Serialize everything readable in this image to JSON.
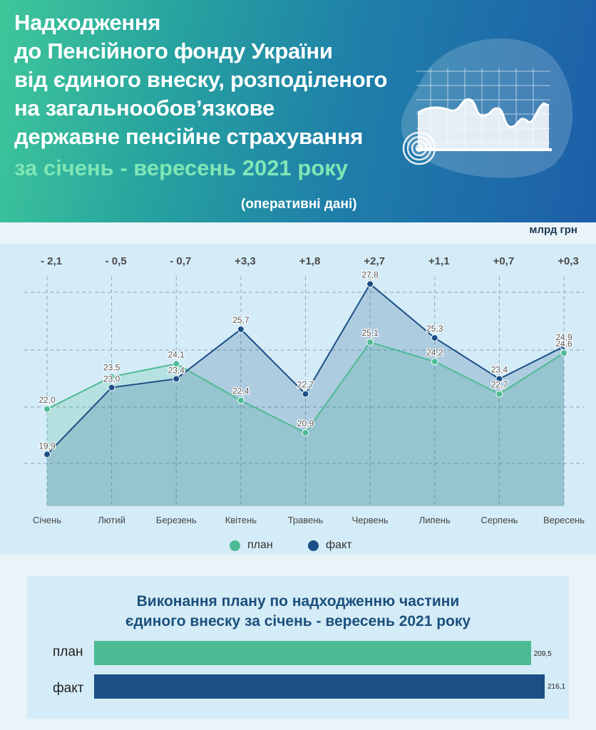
{
  "header": {
    "title_lines": [
      "Надходження",
      "до Пенсійного фонду України",
      "від єдиного внеску, розподіленого",
      "на загальнообов’язкове",
      "державне пенсійне страхування"
    ],
    "period": "за січень - вересень 2021 року",
    "note": "(оперативні дані)"
  },
  "unit": "млрд грн",
  "legend": {
    "plan": "план",
    "fact": "факт"
  },
  "colors": {
    "plan": "#4dbb94",
    "fact": "#1b4f86",
    "diff_text": "#4a4a4a",
    "bar_plan": "#4dbb94",
    "bar_fact": "#1b4f86"
  },
  "chart_data": [
    {
      "type": "area",
      "categories": [
        "Січень",
        "Лютий",
        "Березень",
        "Квітень",
        "Травень",
        "Червень",
        "Липень",
        "Серпень",
        "Вересень"
      ],
      "series": [
        {
          "name": "план",
          "values": [
            22.0,
            23.5,
            24.1,
            22.4,
            20.9,
            25.1,
            24.2,
            22.7,
            24.6
          ]
        },
        {
          "name": "факт",
          "values": [
            19.9,
            23.0,
            23.4,
            25.7,
            22.7,
            27.8,
            25.3,
            23.4,
            24.9
          ]
        }
      ],
      "value_labels": {
        "план": [
          "22,0",
          "23,5",
          "24,1",
          "22,4",
          "20,9",
          "25,1",
          "24,2",
          "22,7",
          "24,6"
        ],
        "факт": [
          "19,9",
          "23,0",
          "23,4",
          "25,7",
          "22,7",
          "27,8",
          "25,3",
          "23,4",
          "24,9"
        ]
      },
      "differences": [
        "- 2,1",
        "- 0,5",
        "- 0,7",
        "+3,3",
        "+1,8",
        "+2,7",
        "+1,1",
        "+0,7",
        "+0,3"
      ],
      "ylim": [
        17.5,
        29
      ],
      "grid": true,
      "legend_position": "bottom"
    },
    {
      "type": "bar",
      "orientation": "horizontal",
      "title_lines": [
        "Виконання плану по надходженню частини",
        "єдиного внеску за січень - вересень 2021 року"
      ],
      "categories": [
        "план",
        "факт"
      ],
      "values": [
        209.5,
        216.1
      ],
      "value_labels": [
        "209,5",
        "216,1"
      ]
    }
  ]
}
